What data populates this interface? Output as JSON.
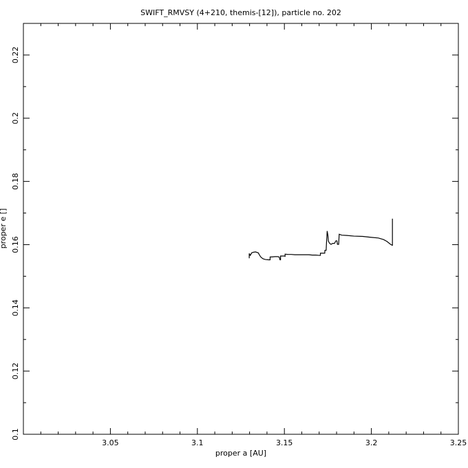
{
  "chart_data": {
    "type": "line",
    "title": "SWIFT_RMVSY (4+210, themis-[12]), particle no. 202",
    "xlabel": "proper a [AU]",
    "ylabel": "proper e []",
    "xlim": [
      3.0,
      3.25
    ],
    "ylim": [
      0.1,
      0.23
    ],
    "x_ticks": [
      "3.05",
      "3.1",
      "3.15",
      "3.2",
      "3.25"
    ],
    "y_ticks": [
      "0.1",
      "0.12",
      "0.14",
      "0.16",
      "0.18",
      "0.2",
      "0.22"
    ],
    "grid": false,
    "series": [
      {
        "points": [
          [
            3.1298,
            0.1557
          ],
          [
            3.1298,
            0.1572
          ],
          [
            3.1304,
            0.1566
          ],
          [
            3.1312,
            0.1574
          ],
          [
            3.1322,
            0.1576
          ],
          [
            3.1334,
            0.1577
          ],
          [
            3.135,
            0.1574
          ],
          [
            3.1358,
            0.1566
          ],
          [
            3.1366,
            0.156
          ],
          [
            3.1378,
            0.1555
          ],
          [
            3.1391,
            0.1553
          ],
          [
            3.1409,
            0.1552
          ],
          [
            3.1418,
            0.1552
          ],
          [
            3.1418,
            0.1561
          ],
          [
            3.1426,
            0.1561
          ],
          [
            3.1446,
            0.1562
          ],
          [
            3.1461,
            0.1562
          ],
          [
            3.147,
            0.1561
          ],
          [
            3.1475,
            0.1552
          ],
          [
            3.1478,
            0.1552
          ],
          [
            3.1478,
            0.1564
          ],
          [
            3.149,
            0.1564
          ],
          [
            3.15,
            0.1564
          ],
          [
            3.1504,
            0.1563
          ],
          [
            3.1504,
            0.157
          ],
          [
            3.152,
            0.1569
          ],
          [
            3.154,
            0.1569
          ],
          [
            3.156,
            0.1568
          ],
          [
            3.158,
            0.1568
          ],
          [
            3.16,
            0.1568
          ],
          [
            3.162,
            0.1568
          ],
          [
            3.164,
            0.1568
          ],
          [
            3.166,
            0.1567
          ],
          [
            3.168,
            0.1567
          ],
          [
            3.17,
            0.1566
          ],
          [
            3.1707,
            0.1566
          ],
          [
            3.1707,
            0.1573
          ],
          [
            3.172,
            0.1573
          ],
          [
            3.1732,
            0.1573
          ],
          [
            3.1733,
            0.1582
          ],
          [
            3.174,
            0.1582
          ],
          [
            3.1742,
            0.1605
          ],
          [
            3.1746,
            0.1643
          ],
          [
            3.175,
            0.163
          ],
          [
            3.1753,
            0.1611
          ],
          [
            3.176,
            0.1604
          ],
          [
            3.1768,
            0.1601
          ],
          [
            3.1778,
            0.1604
          ],
          [
            3.1788,
            0.1604
          ],
          [
            3.1796,
            0.1612
          ],
          [
            3.1802,
            0.1612
          ],
          [
            3.1805,
            0.1601
          ],
          [
            3.1812,
            0.1601
          ],
          [
            3.1815,
            0.1633
          ],
          [
            3.183,
            0.163
          ],
          [
            3.186,
            0.1629
          ],
          [
            3.19,
            0.1627
          ],
          [
            3.195,
            0.1626
          ],
          [
            3.2,
            0.1623
          ],
          [
            3.204,
            0.1621
          ],
          [
            3.207,
            0.1616
          ],
          [
            3.209,
            0.161
          ],
          [
            3.211,
            0.1601
          ],
          [
            3.212,
            0.1598
          ],
          [
            3.2121,
            0.1598
          ],
          [
            3.2121,
            0.1682
          ]
        ]
      }
    ]
  }
}
